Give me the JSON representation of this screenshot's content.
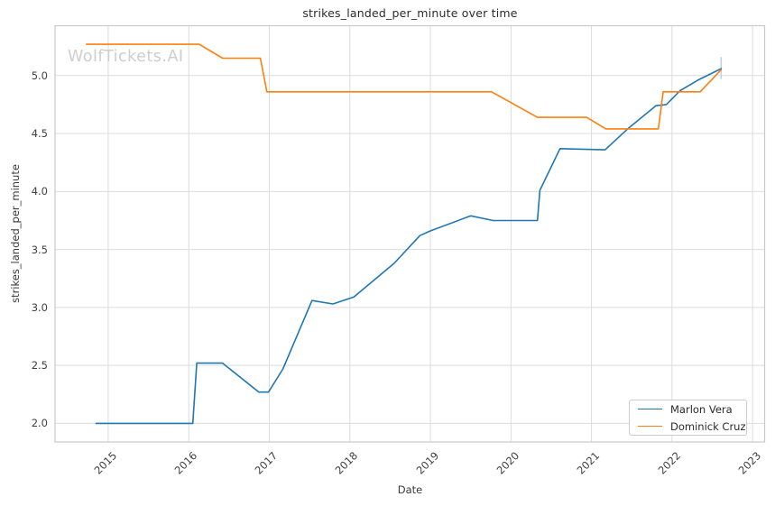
{
  "watermark": {
    "text": "WolfTickets.AI",
    "color": "#cecece"
  },
  "chart_data": {
    "type": "line",
    "title": "strikes_landed_per_minute over time",
    "xlabel": "Date",
    "ylabel": "strikes_landed_per_minute",
    "xlim": [
      2014.34,
      2023.15
    ],
    "ylim": [
      1.84,
      5.43
    ],
    "xticks": [
      2015,
      2016,
      2017,
      2018,
      2019,
      2020,
      2021,
      2022,
      2023
    ],
    "yticks": [
      2.0,
      2.5,
      3.0,
      3.5,
      4.0,
      4.5,
      5.0
    ],
    "grid": true,
    "legend_position": "lower right",
    "grid_color": "#dcdcdc",
    "spine_color": "#c9c9c9",
    "series": [
      {
        "name": "Marlon Vera",
        "color": "#1f77b4",
        "x": [
          2014.85,
          2016.05,
          2016.1,
          2016.42,
          2016.87,
          2016.99,
          2017.17,
          2017.53,
          2017.79,
          2018.05,
          2018.55,
          2018.87,
          2019.0,
          2019.5,
          2019.78,
          2020.33,
          2020.36,
          2020.61,
          2021.17,
          2021.45,
          2021.8,
          2021.93,
          2022.1,
          2022.32,
          2022.61
        ],
        "y": [
          2.0,
          2.0,
          2.52,
          2.52,
          2.27,
          2.27,
          2.47,
          3.06,
          3.03,
          3.09,
          3.38,
          3.62,
          3.66,
          3.79,
          3.75,
          3.75,
          4.01,
          4.37,
          4.36,
          4.54,
          4.74,
          4.75,
          4.87,
          4.96,
          5.06
        ]
      },
      {
        "name": "Dominick Cruz",
        "color": "#ff7f0e",
        "x": [
          2014.73,
          2016.13,
          2016.42,
          2016.89,
          2016.97,
          2019.76,
          2020.33,
          2020.94,
          2021.18,
          2021.83,
          2021.89,
          2022.35,
          2022.61
        ],
        "y": [
          5.27,
          5.27,
          5.15,
          5.15,
          4.86,
          4.86,
          4.64,
          4.64,
          4.54,
          4.54,
          4.86,
          4.86,
          5.05
        ]
      }
    ],
    "end_marker": {
      "x": 2022.61,
      "y_from": 4.97,
      "y_to": 5.16,
      "color": "#b5d5ea"
    }
  }
}
